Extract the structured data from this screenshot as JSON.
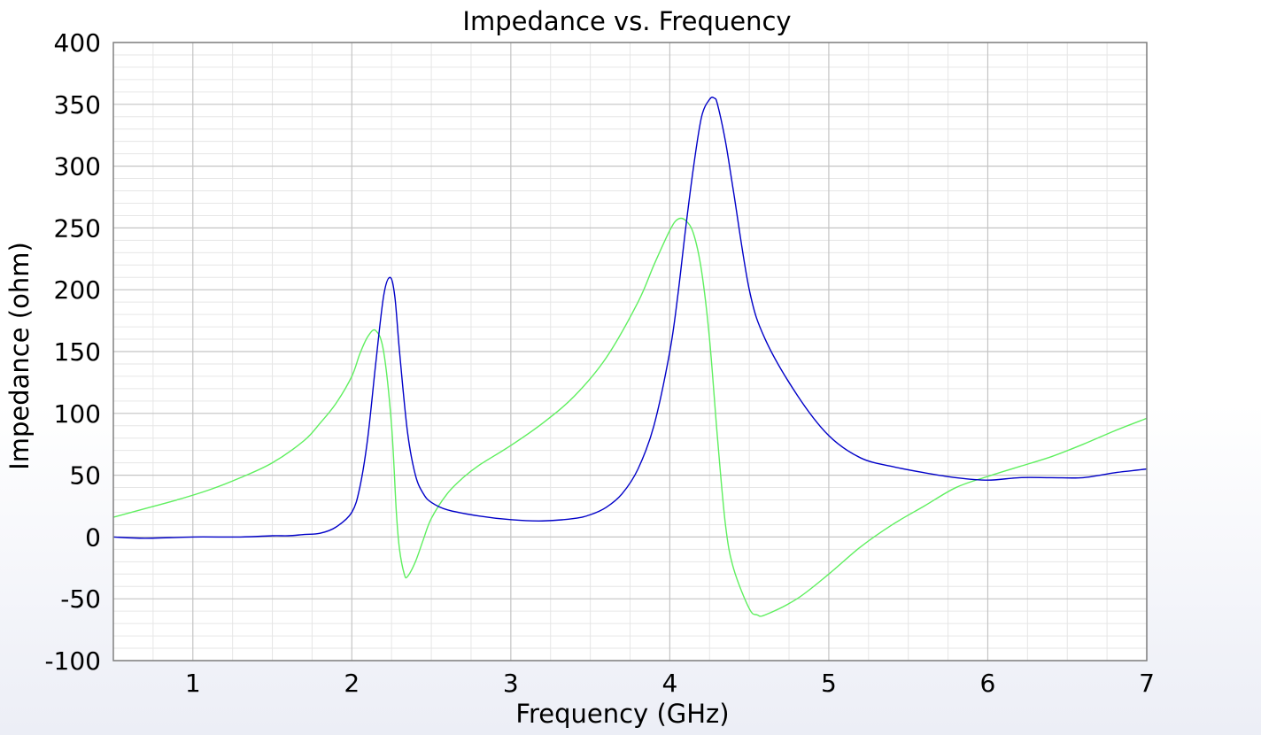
{
  "chart_data": {
    "type": "line",
    "title": "Impedance vs. Frequency",
    "xlabel": "Frequency (GHz)",
    "ylabel": "Impedance (ohm)",
    "xlim": [
      0.5,
      7
    ],
    "ylim": [
      -100,
      400
    ],
    "xticks": [
      1,
      2,
      3,
      4,
      5,
      6,
      7
    ],
    "yticks": [
      -100,
      -50,
      0,
      50,
      100,
      150,
      200,
      250,
      300,
      350,
      400
    ],
    "grid": true,
    "legend": "none",
    "series": [
      {
        "color": "#0000c8",
        "x": [
          0.5,
          0.7,
          1.0,
          1.3,
          1.5,
          1.6,
          1.7,
          1.8,
          1.9,
          2.0,
          2.05,
          2.1,
          2.15,
          2.2,
          2.24,
          2.27,
          2.3,
          2.35,
          2.4,
          2.45,
          2.5,
          2.6,
          2.8,
          3.0,
          3.2,
          3.4,
          3.5,
          3.6,
          3.7,
          3.8,
          3.9,
          4.0,
          4.05,
          4.1,
          4.15,
          4.2,
          4.25,
          4.28,
          4.3,
          4.35,
          4.4,
          4.5,
          4.6,
          4.8,
          5.0,
          5.2,
          5.4,
          5.6,
          5.8,
          6.0,
          6.2,
          6.4,
          6.6,
          6.8,
          7.0
        ],
        "y": [
          0,
          -1,
          0,
          0,
          1,
          1,
          2,
          3,
          8,
          20,
          40,
          80,
          140,
          195,
          210,
          195,
          150,
          85,
          50,
          35,
          28,
          22,
          17,
          14,
          13,
          15,
          18,
          24,
          35,
          55,
          90,
          150,
          195,
          250,
          300,
          340,
          354,
          355,
          350,
          320,
          280,
          200,
          160,
          115,
          82,
          64,
          57,
          52,
          48,
          46,
          48,
          48,
          48,
          52,
          55
        ]
      },
      {
        "color": "#5fef5f",
        "x": [
          0.5,
          0.7,
          0.9,
          1.1,
          1.3,
          1.5,
          1.7,
          1.8,
          1.9,
          2.0,
          2.05,
          2.1,
          2.15,
          2.2,
          2.25,
          2.28,
          2.3,
          2.33,
          2.35,
          2.4,
          2.45,
          2.5,
          2.6,
          2.7,
          2.8,
          3.0,
          3.2,
          3.4,
          3.6,
          3.8,
          3.9,
          4.0,
          4.05,
          4.1,
          4.15,
          4.2,
          4.25,
          4.3,
          4.35,
          4.4,
          4.5,
          4.55,
          4.6,
          4.8,
          5.0,
          5.2,
          5.4,
          5.6,
          5.8,
          6.0,
          6.2,
          6.4,
          6.6,
          6.8,
          7.0
        ],
        "y": [
          16,
          23,
          30,
          38,
          48,
          60,
          78,
          92,
          108,
          130,
          148,
          162,
          167,
          150,
          90,
          20,
          -10,
          -30,
          -32,
          -20,
          -2,
          15,
          35,
          48,
          58,
          74,
          92,
          114,
          145,
          190,
          220,
          248,
          257,
          256,
          245,
          215,
          160,
          80,
          10,
          -25,
          -58,
          -63,
          -63,
          -50,
          -30,
          -8,
          10,
          25,
          40,
          49,
          57,
          65,
          75,
          86,
          96
        ]
      }
    ]
  }
}
